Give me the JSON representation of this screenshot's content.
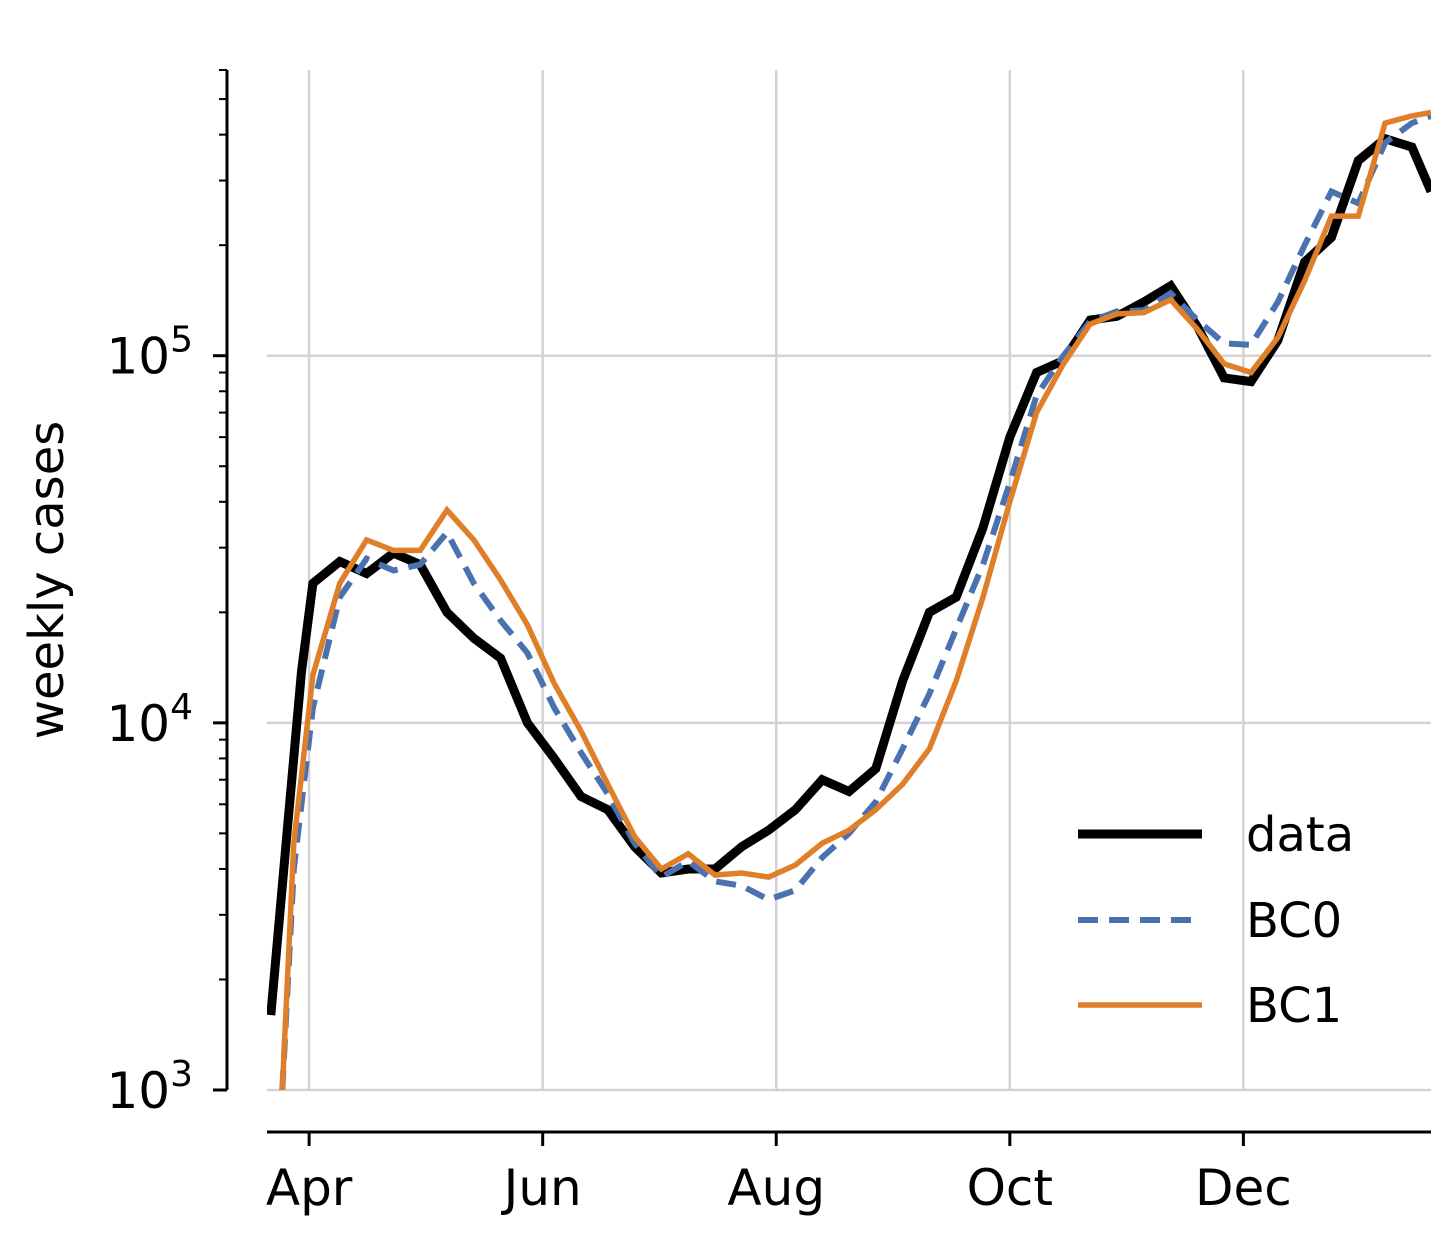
{
  "chart_data": {
    "type": "line",
    "xlabel": "",
    "ylabel": "weekly cases",
    "yscale": "log",
    "ylim": [
      1000,
      600000
    ],
    "xlim": [
      "2020-03-21",
      "2021-01-19"
    ],
    "x_ticks": [
      {
        "date": "2020-04-01",
        "label": "Apr"
      },
      {
        "date": "2020-06-01",
        "label": "Jun"
      },
      {
        "date": "2020-08-01",
        "label": "Aug"
      },
      {
        "date": "2020-10-01",
        "label": "Oct"
      },
      {
        "date": "2020-12-01",
        "label": "Dec"
      }
    ],
    "y_ticks": [
      {
        "value": 1000,
        "base": "10",
        "exp": "3"
      },
      {
        "value": 10000,
        "base": "10",
        "exp": "4"
      },
      {
        "value": 100000,
        "base": "10",
        "exp": "5"
      }
    ],
    "grid": true,
    "legend_position": "lower-right",
    "series": [
      {
        "name": "data",
        "color": "#000000",
        "style": "solid",
        "x": [
          "2020-03-22",
          "2020-03-26",
          "2020-03-30",
          "2020-04-02",
          "2020-04-09",
          "2020-04-16",
          "2020-04-23",
          "2020-04-30",
          "2020-05-07",
          "2020-05-14",
          "2020-05-21",
          "2020-05-28",
          "2020-06-04",
          "2020-06-11",
          "2020-06-18",
          "2020-06-25",
          "2020-07-02",
          "2020-07-09",
          "2020-07-16",
          "2020-07-23",
          "2020-07-30",
          "2020-08-06",
          "2020-08-13",
          "2020-08-20",
          "2020-08-27",
          "2020-09-03",
          "2020-09-10",
          "2020-09-17",
          "2020-09-24",
          "2020-10-01",
          "2020-10-08",
          "2020-10-15",
          "2020-10-22",
          "2020-10-29",
          "2020-11-05",
          "2020-11-12",
          "2020-11-19",
          "2020-11-26",
          "2020-12-03",
          "2020-12-10",
          "2020-12-17",
          "2020-12-24",
          "2020-12-31",
          "2021-01-07",
          "2021-01-14",
          "2021-01-19"
        ],
        "y": [
          1600,
          4700,
          13800,
          24000,
          27500,
          25500,
          29000,
          27000,
          20000,
          17000,
          15000,
          10000,
          8000,
          6300,
          5800,
          4600,
          3900,
          4000,
          4000,
          4600,
          5100,
          5800,
          7000,
          6500,
          7500,
          13000,
          20000,
          22000,
          34000,
          60000,
          90000,
          97000,
          125000,
          128000,
          140000,
          155000,
          120000,
          87000,
          85000,
          110000,
          180000,
          210000,
          340000,
          390000,
          370000,
          280000
        ]
      },
      {
        "name": "BC0",
        "color": "#4a72b0",
        "style": "dashed",
        "x": [
          "2020-03-25",
          "2020-03-28",
          "2020-04-02",
          "2020-04-09",
          "2020-04-16",
          "2020-04-23",
          "2020-04-30",
          "2020-05-07",
          "2020-05-14",
          "2020-05-21",
          "2020-05-28",
          "2020-06-04",
          "2020-06-11",
          "2020-06-18",
          "2020-06-25",
          "2020-07-02",
          "2020-07-09",
          "2020-07-16",
          "2020-07-23",
          "2020-07-30",
          "2020-08-06",
          "2020-08-13",
          "2020-08-20",
          "2020-08-27",
          "2020-09-03",
          "2020-09-10",
          "2020-09-17",
          "2020-09-24",
          "2020-10-01",
          "2020-10-08",
          "2020-10-15",
          "2020-10-22",
          "2020-10-29",
          "2020-11-05",
          "2020-11-12",
          "2020-11-19",
          "2020-11-26",
          "2020-12-03",
          "2020-12-10",
          "2020-12-17",
          "2020-12-24",
          "2020-12-31",
          "2021-01-07",
          "2021-01-14",
          "2021-01-19"
        ],
        "y": [
          1000,
          4000,
          11000,
          22000,
          28000,
          26000,
          27000,
          33000,
          24000,
          19000,
          15500,
          11000,
          8300,
          6400,
          4700,
          3800,
          4200,
          3700,
          3600,
          3300,
          3500,
          4300,
          5000,
          6100,
          8500,
          12000,
          18000,
          27000,
          45000,
          78000,
          100000,
          124000,
          132000,
          133000,
          148000,
          125000,
          108000,
          107000,
          140000,
          200000,
          280000,
          260000,
          380000,
          430000,
          450000
        ]
      },
      {
        "name": "BC1",
        "color": "#e07f2a",
        "style": "solid",
        "x": [
          "2020-03-25",
          "2020-03-28",
          "2020-04-02",
          "2020-04-09",
          "2020-04-16",
          "2020-04-23",
          "2020-04-30",
          "2020-05-07",
          "2020-05-14",
          "2020-05-21",
          "2020-05-28",
          "2020-06-04",
          "2020-06-11",
          "2020-06-18",
          "2020-06-25",
          "2020-07-02",
          "2020-07-09",
          "2020-07-16",
          "2020-07-23",
          "2020-07-30",
          "2020-08-06",
          "2020-08-13",
          "2020-08-20",
          "2020-08-27",
          "2020-09-03",
          "2020-09-10",
          "2020-09-17",
          "2020-09-24",
          "2020-10-01",
          "2020-10-08",
          "2020-10-15",
          "2020-10-22",
          "2020-10-29",
          "2020-11-05",
          "2020-11-12",
          "2020-11-19",
          "2020-11-26",
          "2020-12-03",
          "2020-12-10",
          "2020-12-17",
          "2020-12-24",
          "2020-12-31",
          "2021-01-07",
          "2021-01-14",
          "2021-01-19"
        ],
        "y": [
          1000,
          4700,
          13500,
          24000,
          31500,
          29500,
          29500,
          38000,
          31500,
          24500,
          18500,
          12800,
          9500,
          6800,
          4900,
          4000,
          4400,
          3850,
          3900,
          3800,
          4100,
          4700,
          5100,
          5800,
          6800,
          8500,
          13000,
          22000,
          40000,
          70000,
          95000,
          122000,
          130000,
          131000,
          142000,
          118000,
          95000,
          90000,
          112000,
          160000,
          240000,
          240000,
          430000,
          450000,
          460000
        ]
      }
    ]
  }
}
